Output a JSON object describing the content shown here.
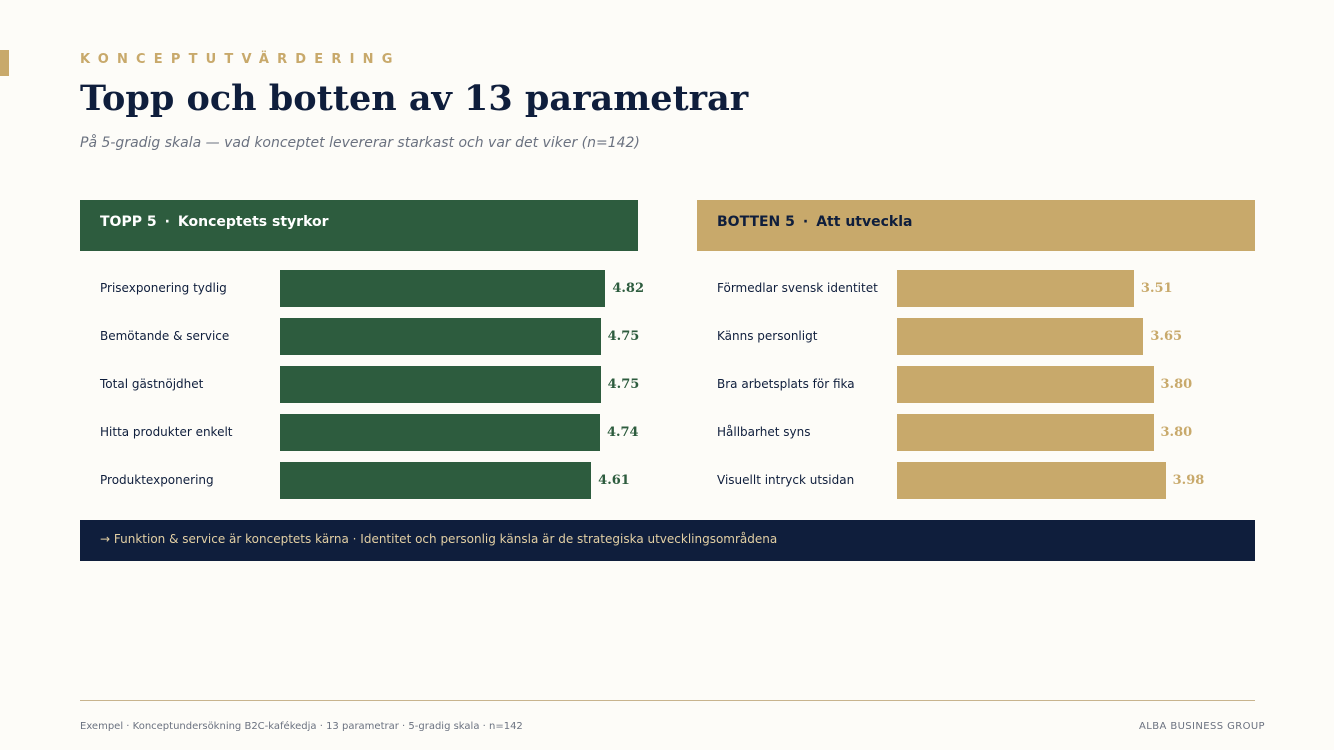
{
  "header": {
    "kicker": "KONCEPTUTVÄRDERING",
    "title": "Topp och botten av 13 parametrar",
    "subtitle": "På 5-gradig skala — vad konceptet levererar starkast och var det viker (n=142)"
  },
  "panels": {
    "top": {
      "heading": "TOPP 5",
      "separator": "·",
      "subheading": "Konceptets styrkor"
    },
    "bottom": {
      "heading": "BOTTEN 5",
      "separator": "·",
      "subheading": "Att utveckla"
    }
  },
  "chart_data": [
    {
      "type": "bar",
      "orientation": "horizontal",
      "categories": [
        "Prisexponering tydlig",
        "Bemötande & service",
        "Total gästnöjdhet",
        "Hitta produkter enkelt",
        "Produktexponering"
      ],
      "values": [
        4.82,
        4.75,
        4.75,
        4.74,
        4.61
      ],
      "value_labels": [
        "4.82",
        "4.75",
        "4.75",
        "4.74",
        "4.61"
      ],
      "xlim": [
        0,
        5
      ],
      "color": "#2D5C3E",
      "grid": false
    },
    {
      "type": "bar",
      "orientation": "horizontal",
      "categories": [
        "Förmedlar svensk identitet",
        "Känns personligt",
        "Bra arbetsplats för fika",
        "Hållbarhet syns",
        "Visuellt intryck utsidan"
      ],
      "values": [
        3.51,
        3.65,
        3.8,
        3.8,
        3.98
      ],
      "value_labels": [
        "3.51",
        "3.65",
        "3.80",
        "3.80",
        "3.98"
      ],
      "xlim": [
        0,
        5
      ],
      "color": "#C8A96B",
      "grid": false
    }
  ],
  "insight": "→ Funktion & service är konceptets kärna · Identitet och personlig känsla är de strategiska utvecklingsområdena",
  "footer": {
    "left": "Exempel · Konceptundersökning B2C-kafékedja · 13 parametrar · 5-gradig skala · n=142",
    "right": "ALBA BUSINESS GROUP"
  },
  "colors": {
    "background": "#FDFCF8",
    "navy": "#0F1E3C",
    "green": "#2D5C3E",
    "gold": "#C8A96B"
  }
}
